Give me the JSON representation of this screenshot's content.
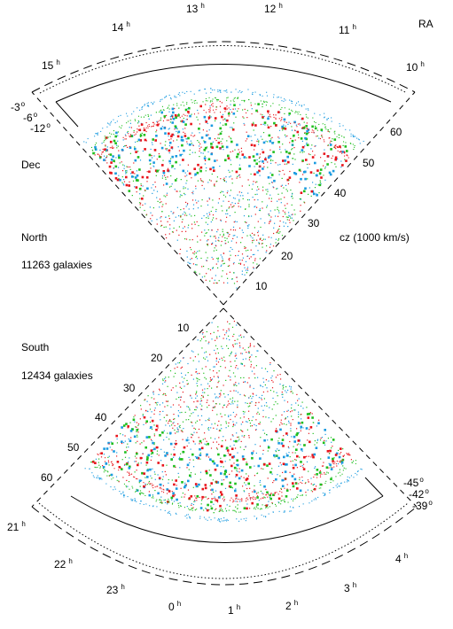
{
  "header": {
    "ra_label": "RA"
  },
  "north": {
    "region_label": "North",
    "count_label": "11263 galaxies",
    "dec_label": "Dec",
    "cz_label": "cz (1000 km/s)",
    "ra_ticks": [
      {
        "hour": "15",
        "unit": "h"
      },
      {
        "hour": "14",
        "unit": "h"
      },
      {
        "hour": "13",
        "unit": "h"
      },
      {
        "hour": "12",
        "unit": "h"
      },
      {
        "hour": "11",
        "unit": "h"
      },
      {
        "hour": "10",
        "unit": "h"
      }
    ],
    "dec_ticks": [
      {
        "value": "-3",
        "unit": "o"
      },
      {
        "value": "-6",
        "unit": "o"
      },
      {
        "value": "-12",
        "unit": "o"
      }
    ],
    "cz_ticks": [
      "10",
      "20",
      "30",
      "40",
      "50",
      "60"
    ]
  },
  "south": {
    "region_label": "South",
    "count_label": "12434 galaxies",
    "ra_ticks": [
      {
        "hour": "21",
        "unit": "h"
      },
      {
        "hour": "22",
        "unit": "h"
      },
      {
        "hour": "23",
        "unit": "h"
      },
      {
        "hour": "0",
        "unit": "h"
      },
      {
        "hour": "1",
        "unit": "h"
      },
      {
        "hour": "2",
        "unit": "h"
      },
      {
        "hour": "3",
        "unit": "h"
      },
      {
        "hour": "4",
        "unit": "h"
      }
    ],
    "dec_ticks": [
      {
        "value": "-45",
        "unit": "o"
      },
      {
        "value": "-42",
        "unit": "o"
      },
      {
        "value": "-39",
        "unit": "o"
      }
    ],
    "cz_ticks": [
      "10",
      "20",
      "30",
      "40",
      "50",
      "60"
    ]
  },
  "colors": {
    "slice_red": "#e8141b",
    "slice_green": "#1fbf1f",
    "slice_blue": "#1a9be0",
    "outline": "#000000"
  }
}
